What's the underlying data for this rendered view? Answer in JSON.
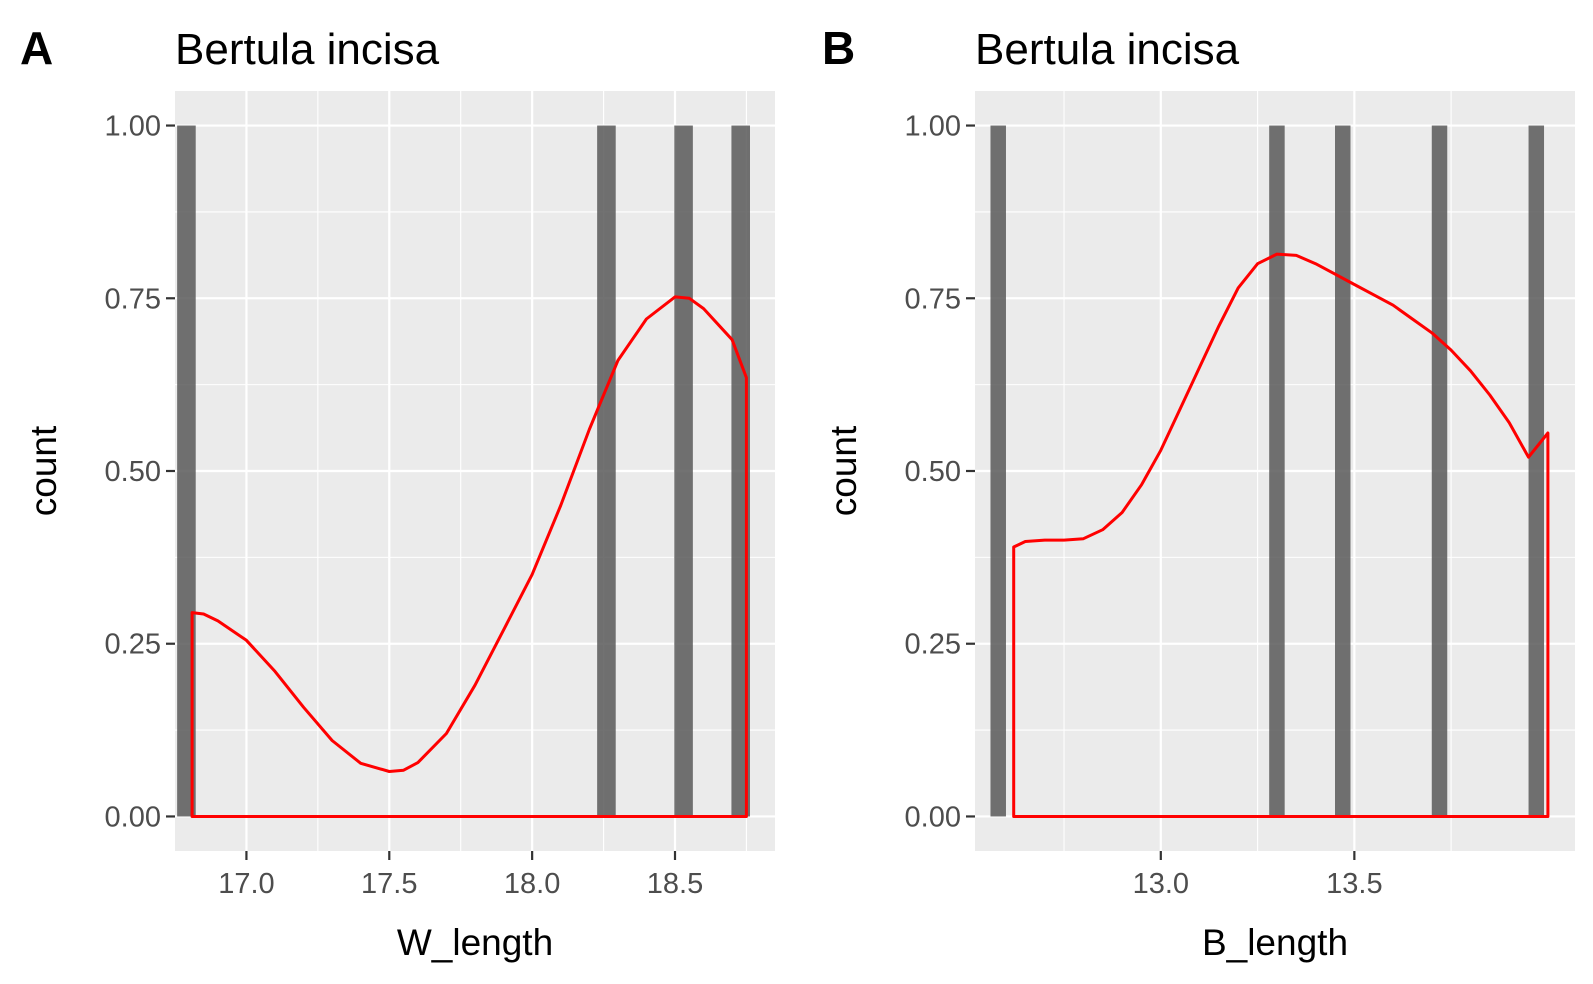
{
  "colors": {
    "panel_background": "#ebebeb",
    "grid": "#ffffff",
    "bar_fill": "#595959",
    "density_line": "#ff0000",
    "tick_text": "#4d4d4d"
  },
  "chart_data": [
    {
      "type": "bar",
      "panel_label": "A",
      "title": "Bertula incisa",
      "xlabel": "W_length",
      "ylabel": "count",
      "xlim": [
        16.75,
        18.85
      ],
      "ylim": [
        -0.05,
        1.05
      ],
      "x_ticks": [
        17.0,
        17.5,
        18.0,
        18.5
      ],
      "x_tick_labels": [
        "17.0",
        "17.5",
        "18.0",
        "18.5"
      ],
      "y_ticks": [
        0,
        0.25,
        0.5,
        0.75,
        1
      ],
      "y_tick_labels": [
        "0.00",
        "0.25",
        "0.50",
        "0.75",
        "1.00"
      ],
      "grid": true,
      "bars": {
        "bin_width": 0.065,
        "centers": [
          16.79,
          18.26,
          18.53,
          18.73
        ],
        "counts": [
          1,
          1,
          1,
          1
        ]
      },
      "density": {
        "x": [
          16.81,
          16.85,
          16.9,
          17.0,
          17.1,
          17.2,
          17.3,
          17.4,
          17.5,
          17.55,
          17.6,
          17.7,
          17.8,
          17.9,
          18.0,
          18.1,
          18.2,
          18.3,
          18.4,
          18.5,
          18.55,
          18.6,
          18.7,
          18.75
        ],
        "y": [
          0.295,
          0.293,
          0.283,
          0.255,
          0.21,
          0.158,
          0.11,
          0.077,
          0.065,
          0.067,
          0.078,
          0.12,
          0.19,
          0.27,
          0.35,
          0.45,
          0.56,
          0.66,
          0.72,
          0.752,
          0.75,
          0.735,
          0.69,
          0.635
        ]
      }
    },
    {
      "type": "bar",
      "panel_label": "B",
      "title": "Bertula incisa",
      "xlabel": "B_length",
      "ylabel": "count",
      "xlim": [
        12.52,
        14.07
      ],
      "ylim": [
        -0.05,
        1.05
      ],
      "x_ticks": [
        13.0,
        13.5
      ],
      "x_tick_labels": [
        "13.0",
        "13.5"
      ],
      "y_ticks": [
        0,
        0.25,
        0.5,
        0.75,
        1
      ],
      "y_tick_labels": [
        "0.00",
        "0.25",
        "0.50",
        "0.75",
        "1.00"
      ],
      "grid": true,
      "bars": {
        "bin_width": 0.04,
        "centers": [
          12.58,
          13.3,
          13.47,
          13.72,
          13.97
        ],
        "counts": [
          1,
          1,
          1,
          1,
          1
        ]
      },
      "density": {
        "x": [
          12.62,
          12.65,
          12.7,
          12.75,
          12.8,
          12.85,
          12.9,
          12.95,
          13.0,
          13.05,
          13.1,
          13.15,
          13.2,
          13.25,
          13.3,
          13.35,
          13.4,
          13.45,
          13.5,
          13.55,
          13.6,
          13.65,
          13.7,
          13.75,
          13.8,
          13.85,
          13.9,
          13.95,
          14.0
        ],
        "y": [
          0.39,
          0.398,
          0.4,
          0.4,
          0.402,
          0.415,
          0.44,
          0.48,
          0.53,
          0.59,
          0.65,
          0.71,
          0.765,
          0.8,
          0.814,
          0.812,
          0.8,
          0.785,
          0.77,
          0.755,
          0.74,
          0.72,
          0.7,
          0.675,
          0.645,
          0.61,
          0.57,
          0.52,
          0.555
        ]
      }
    }
  ]
}
